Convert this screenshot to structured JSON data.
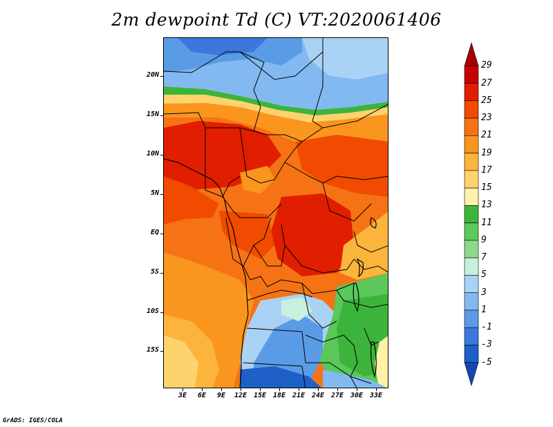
{
  "title": "2m dewpoint Td (C) VT:2020061406",
  "credit": "GrADS: IGES/COLA",
  "map": {
    "lat_labels": [
      "20N",
      "15N",
      "10N",
      "5N",
      "EQ",
      "5S",
      "10S",
      "15S"
    ],
    "lon_labels": [
      "3E",
      "6E",
      "9E",
      "12E",
      "15E",
      "18E",
      "21E",
      "24E",
      "27E",
      "30E",
      "33E"
    ]
  },
  "colorbar": {
    "labels": [
      "29",
      "27",
      "25",
      "23",
      "21",
      "19",
      "17",
      "15",
      "13",
      "11",
      "9",
      "7",
      "5",
      "3",
      "1",
      "-1",
      "-3",
      "-5"
    ],
    "colors": [
      "#a50000",
      "#c80000",
      "#e11e00",
      "#f04b00",
      "#f57314",
      "#fa961e",
      "#fcb43c",
      "#fdd36e",
      "#fff0aa",
      "#3cb43c",
      "#5ac85a",
      "#8cd98c",
      "#c8f0dc",
      "#aad2f5",
      "#82b9f0",
      "#5a9be6",
      "#3c78dc",
      "#1e5fc8",
      "#1446b4"
    ]
  }
}
